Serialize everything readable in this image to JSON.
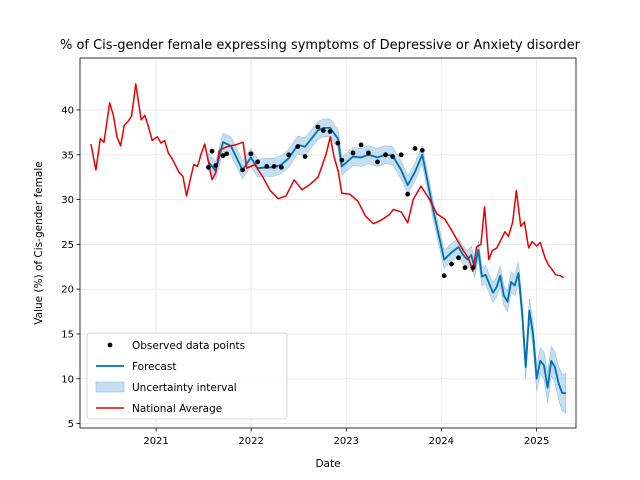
{
  "chart_data": {
    "type": "line",
    "title": "% of Cis-gender female expressing symptoms of Depressive or Anxiety disorder",
    "xlabel": "Date",
    "ylabel": "Value (%) of Cis-gender female",
    "xlim": [
      "2020-03-15",
      "2025-06-01"
    ],
    "ylim": [
      4.5,
      45.8
    ],
    "x_ticks": [
      "2021",
      "2022",
      "2023",
      "2024",
      "2025"
    ],
    "x_tick_dates": [
      "2021-01-01",
      "2022-01-01",
      "2023-01-01",
      "2024-01-01",
      "2025-01-01"
    ],
    "y_ticks": [
      5,
      10,
      15,
      20,
      25,
      30,
      35,
      40
    ],
    "grid": true,
    "legend_position": "lower-left",
    "legend": [
      "Observed data points",
      "Forecast",
      "Uncertainty interval",
      "National Average"
    ],
    "colors": {
      "observed": "#000000",
      "forecast": "#0072b2",
      "uncertainty": "#a6cde8",
      "national": "#e60000",
      "grid": "#e6e6e6"
    },
    "series": [
      {
        "name": "Observed data points",
        "kind": "scatter",
        "points": [
          [
            "2021-07-21",
            33.6
          ],
          [
            "2021-08-04",
            35.4
          ],
          [
            "2021-08-18",
            33.8
          ],
          [
            "2021-09-15",
            34.9
          ],
          [
            "2021-09-29",
            35.1
          ],
          [
            "2021-11-29",
            33.3
          ],
          [
            "2021-12-31",
            35.1
          ],
          [
            "2022-01-26",
            34.2
          ],
          [
            "2022-03-02",
            33.7
          ],
          [
            "2022-03-30",
            33.7
          ],
          [
            "2022-04-27",
            33.6
          ],
          [
            "2022-05-25",
            35.0
          ],
          [
            "2022-06-29",
            35.9
          ],
          [
            "2022-07-27",
            34.8
          ],
          [
            "2022-09-14",
            38.1
          ],
          [
            "2022-10-05",
            37.7
          ],
          [
            "2022-10-31",
            37.6
          ],
          [
            "2022-11-30",
            36.3
          ],
          [
            "2022-12-15",
            34.4
          ],
          [
            "2023-01-27",
            35.2
          ],
          [
            "2023-02-27",
            36.1
          ],
          [
            "2023-03-27",
            35.2
          ],
          [
            "2023-05-01",
            34.2
          ],
          [
            "2023-06-01",
            35.0
          ],
          [
            "2023-06-28",
            34.8
          ],
          [
            "2023-07-31",
            35.0
          ],
          [
            "2023-08-25",
            30.6
          ],
          [
            "2023-09-22",
            35.7
          ],
          [
            "2023-10-20",
            35.5
          ],
          [
            "2024-01-12",
            21.5
          ],
          [
            "2024-02-09",
            22.8
          ],
          [
            "2024-03-07",
            23.5
          ],
          [
            "2024-04-01",
            22.4
          ],
          [
            "2024-05-01",
            22.4
          ]
        ]
      },
      {
        "name": "Forecast",
        "kind": "line",
        "points": [
          [
            "2021-07-21",
            34.2
          ],
          [
            "2021-08-18",
            33.2
          ],
          [
            "2021-09-15",
            36.4
          ],
          [
            "2021-10-15",
            36.0
          ],
          [
            "2021-11-29",
            33.3
          ],
          [
            "2021-12-31",
            34.7
          ],
          [
            "2022-01-26",
            33.5
          ],
          [
            "2022-03-02",
            33.6
          ],
          [
            "2022-03-30",
            33.6
          ],
          [
            "2022-04-27",
            33.9
          ],
          [
            "2022-05-25",
            34.6
          ],
          [
            "2022-06-29",
            36.1
          ],
          [
            "2022-07-27",
            35.9
          ],
          [
            "2022-09-14",
            37.7
          ],
          [
            "2022-10-05",
            38.0
          ],
          [
            "2022-10-31",
            38.0
          ],
          [
            "2022-11-30",
            36.8
          ],
          [
            "2022-12-15",
            33.7
          ],
          [
            "2023-01-27",
            34.8
          ],
          [
            "2023-02-27",
            34.7
          ],
          [
            "2023-03-27",
            35.0
          ],
          [
            "2023-05-01",
            34.7
          ],
          [
            "2023-06-01",
            35.0
          ],
          [
            "2023-06-28",
            34.9
          ],
          [
            "2023-07-31",
            33.3
          ],
          [
            "2023-08-25",
            31.6
          ],
          [
            "2023-09-22",
            33.1
          ],
          [
            "2023-10-20",
            35.0
          ],
          [
            "2023-12-01",
            28.8
          ],
          [
            "2024-01-12",
            23.3
          ],
          [
            "2024-02-09",
            24.1
          ],
          [
            "2024-03-07",
            24.7
          ],
          [
            "2024-03-25",
            23.8
          ],
          [
            "2024-04-10",
            23.3
          ],
          [
            "2024-04-25",
            23.8
          ],
          [
            "2024-05-08",
            22.3
          ],
          [
            "2024-05-22",
            24.4
          ],
          [
            "2024-06-05",
            21.4
          ],
          [
            "2024-06-19",
            21.6
          ],
          [
            "2024-07-03",
            20.6
          ],
          [
            "2024-07-17",
            19.6
          ],
          [
            "2024-07-31",
            20.2
          ],
          [
            "2024-08-14",
            21.5
          ],
          [
            "2024-08-28",
            19.3
          ],
          [
            "2024-09-11",
            18.6
          ],
          [
            "2024-09-25",
            20.8
          ],
          [
            "2024-10-09",
            20.4
          ],
          [
            "2024-10-23",
            21.8
          ],
          [
            "2024-11-06",
            17.5
          ],
          [
            "2024-11-20",
            11.3
          ],
          [
            "2024-12-04",
            17.6
          ],
          [
            "2024-12-18",
            15.0
          ],
          [
            "2025-01-01",
            10.0
          ],
          [
            "2025-01-15",
            12.0
          ],
          [
            "2025-01-29",
            11.5
          ],
          [
            "2025-02-12",
            9.0
          ],
          [
            "2025-02-26",
            12.0
          ],
          [
            "2025-03-12",
            11.3
          ],
          [
            "2025-03-26",
            9.5
          ],
          [
            "2025-04-09",
            8.4
          ],
          [
            "2025-04-23",
            8.4
          ]
        ]
      },
      {
        "name": "Uncertainty interval",
        "kind": "band",
        "halfwidth_points": [
          [
            "2021-07-21",
            1.0
          ],
          [
            "2022-12-15",
            1.0
          ],
          [
            "2023-10-20",
            1.0
          ],
          [
            "2024-05-08",
            1.0
          ],
          [
            "2024-11-06",
            1.2
          ],
          [
            "2025-01-01",
            1.4
          ],
          [
            "2025-03-12",
            1.7
          ],
          [
            "2025-04-23",
            2.2
          ]
        ]
      },
      {
        "name": "National Average",
        "kind": "line",
        "points": [
          [
            "2020-04-26",
            36.2
          ],
          [
            "2020-05-15",
            33.3
          ],
          [
            "2020-06-01",
            36.8
          ],
          [
            "2020-06-15",
            36.4
          ],
          [
            "2020-07-07",
            40.8
          ],
          [
            "2020-07-21",
            39.4
          ],
          [
            "2020-08-04",
            37.0
          ],
          [
            "2020-08-18",
            36.0
          ],
          [
            "2020-09-01",
            38.3
          ],
          [
            "2020-09-15",
            38.7
          ],
          [
            "2020-09-29",
            39.3
          ],
          [
            "2020-10-15",
            42.9
          ],
          [
            "2020-11-05",
            38.9
          ],
          [
            "2020-11-19",
            39.4
          ],
          [
            "2020-12-03",
            38.1
          ],
          [
            "2020-12-17",
            36.6
          ],
          [
            "2021-01-06",
            37.0
          ],
          [
            "2021-01-20",
            36.3
          ],
          [
            "2021-02-03",
            36.6
          ],
          [
            "2021-02-17",
            35.2
          ],
          [
            "2021-03-03",
            34.6
          ],
          [
            "2021-03-17",
            33.8
          ],
          [
            "2021-03-31",
            33.0
          ],
          [
            "2021-04-14",
            32.6
          ],
          [
            "2021-04-28",
            30.4
          ],
          [
            "2021-05-12",
            32.2
          ],
          [
            "2021-05-26",
            33.9
          ],
          [
            "2021-06-09",
            33.7
          ],
          [
            "2021-06-23",
            35.1
          ],
          [
            "2021-07-07",
            36.2
          ],
          [
            "2021-07-21",
            34.2
          ],
          [
            "2021-08-04",
            32.2
          ],
          [
            "2021-08-18",
            33.0
          ],
          [
            "2021-09-01",
            35.5
          ],
          [
            "2021-09-15",
            35.7
          ],
          [
            "2021-10-01",
            35.9
          ],
          [
            "2021-11-01",
            36.1
          ],
          [
            "2021-12-01",
            36.4
          ],
          [
            "2021-12-15",
            33.5
          ],
          [
            "2022-01-15",
            33.9
          ],
          [
            "2022-02-15",
            32.5
          ],
          [
            "2022-03-15",
            31.0
          ],
          [
            "2022-04-15",
            30.1
          ],
          [
            "2022-05-15",
            30.4
          ],
          [
            "2022-06-15",
            32.2
          ],
          [
            "2022-07-15",
            31.1
          ],
          [
            "2022-08-15",
            31.7
          ],
          [
            "2022-09-15",
            32.5
          ],
          [
            "2022-10-15",
            35.0
          ],
          [
            "2022-11-01",
            37.0
          ],
          [
            "2022-11-15",
            34.8
          ],
          [
            "2022-12-01",
            33.2
          ],
          [
            "2022-12-15",
            30.7
          ],
          [
            "2023-01-15",
            30.6
          ],
          [
            "2023-02-15",
            29.8
          ],
          [
            "2023-03-15",
            28.2
          ],
          [
            "2023-04-15",
            27.3
          ],
          [
            "2023-05-15",
            27.7
          ],
          [
            "2023-06-15",
            28.3
          ],
          [
            "2023-07-01",
            28.9
          ],
          [
            "2023-08-01",
            28.6
          ],
          [
            "2023-08-25",
            27.4
          ],
          [
            "2023-09-15",
            30.0
          ],
          [
            "2023-10-15",
            31.5
          ],
          [
            "2023-11-15",
            30.1
          ],
          [
            "2023-12-15",
            28.4
          ],
          [
            "2024-01-15",
            27.8
          ],
          [
            "2024-02-15",
            26.3
          ],
          [
            "2024-03-15",
            24.8
          ],
          [
            "2024-04-15",
            23.4
          ],
          [
            "2024-05-01",
            22.0
          ],
          [
            "2024-05-15",
            24.7
          ],
          [
            "2024-06-01",
            25.0
          ],
          [
            "2024-06-15",
            29.2
          ],
          [
            "2024-07-01",
            23.3
          ],
          [
            "2024-07-15",
            24.3
          ],
          [
            "2024-08-01",
            24.6
          ],
          [
            "2024-08-15",
            25.4
          ],
          [
            "2024-09-01",
            26.4
          ],
          [
            "2024-09-15",
            25.9
          ],
          [
            "2024-10-01",
            27.5
          ],
          [
            "2024-10-15",
            31.0
          ],
          [
            "2024-11-01",
            27.0
          ],
          [
            "2024-11-15",
            27.5
          ],
          [
            "2024-12-01",
            24.6
          ],
          [
            "2024-12-15",
            25.3
          ],
          [
            "2025-01-01",
            24.8
          ],
          [
            "2025-01-15",
            25.2
          ],
          [
            "2025-02-01",
            23.6
          ],
          [
            "2025-02-15",
            22.7
          ],
          [
            "2025-03-01",
            22.2
          ],
          [
            "2025-03-15",
            21.6
          ],
          [
            "2025-04-01",
            21.5
          ],
          [
            "2025-04-15",
            21.3
          ]
        ]
      }
    ]
  }
}
